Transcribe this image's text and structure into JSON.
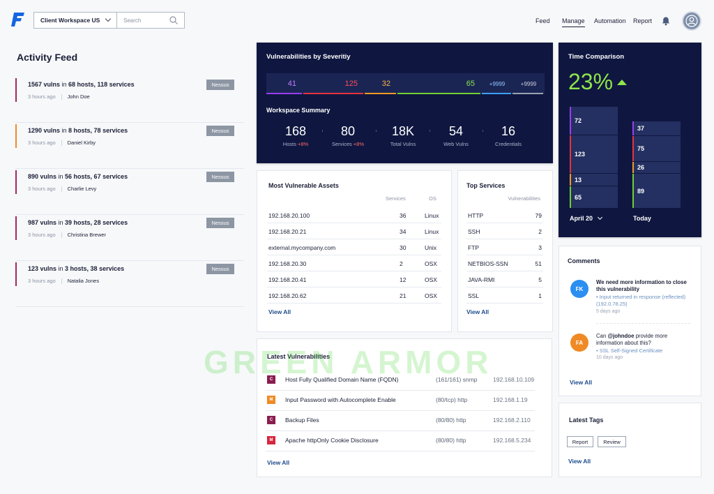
{
  "header": {
    "workspace": "Client Workspace US",
    "search_placeholder": "Search",
    "nav": [
      {
        "label": "Feed",
        "active": false
      },
      {
        "label": "Manage",
        "active": true
      },
      {
        "label": "Automation",
        "active": false
      },
      {
        "label": "Report",
        "active": false
      }
    ]
  },
  "activity_feed": {
    "title": "Activity Feed",
    "items": [
      {
        "vulns": "1567 vulns",
        "mid": " in ",
        "hosts": "68 hosts, 118 services",
        "time": "3 hours ago",
        "user": "John Doe",
        "tag": "Nessus",
        "color": "#a0275f"
      },
      {
        "vulns": "1290 vulns",
        "mid": " in ",
        "hosts": "8 hosts, 78 services",
        "time": "3 hours ago",
        "user": "Daniel Kirby",
        "tag": "Nessus",
        "color": "#f08a24"
      },
      {
        "vulns": "890 vulns",
        "mid": " in ",
        "hosts": "56 hosts, 67 services",
        "time": "3 hours ago",
        "user": "Charlie Levy",
        "tag": "Nessus",
        "color": "#a0275f"
      },
      {
        "vulns": "987 vulns",
        "mid": " in ",
        "hosts": "39 hosts, 28 services",
        "time": "3 hours ago",
        "user": "Christina Brewer",
        "tag": "Nessus",
        "color": "#a0275f"
      },
      {
        "vulns": "123 vulns",
        "mid": " in ",
        "hosts": "3 hosts, 38 services",
        "time": "3 hours ago",
        "user": "Natalia Jones",
        "tag": "Nessus",
        "color": "#a0275f"
      }
    ]
  },
  "severity": {
    "title": "Vulnerabilities by Severitiy",
    "cells": [
      {
        "value": "41",
        "text_color": "#c57bff",
        "line_color": "#9b3cf0"
      },
      {
        "value": "125",
        "text_color": "#ff4d5a",
        "line_color": "#e8323f"
      },
      {
        "value": "32",
        "text_color": "#ffb347",
        "line_color": "#f39a1e"
      },
      {
        "value": "65",
        "text_color": "#8ee44a",
        "line_color": "#6fd12e"
      },
      {
        "value": "+9999",
        "text_color": "#8fc6ff",
        "line_color": "#3fa0ff"
      },
      {
        "value": "+9999",
        "text_color": "#c9ced9",
        "line_color": "#9aa3b2"
      }
    ]
  },
  "workspace_summary": {
    "title": "Workspace Summary",
    "stats": [
      {
        "value": "168",
        "label": "Hosts",
        "delta": "+8%"
      },
      {
        "value": "80",
        "label": "Services",
        "delta": "+8%"
      },
      {
        "value": "18K",
        "label": "Total Vulns",
        "delta": ""
      },
      {
        "value": "54",
        "label": "Web Vulns",
        "delta": ""
      },
      {
        "value": "16",
        "label": "Credentials",
        "delta": ""
      }
    ]
  },
  "time_comparison": {
    "title": "Time Comparison",
    "percent": "23%",
    "left_blocks": [
      "72",
      "123",
      "13",
      "65"
    ],
    "right_blocks": [
      "37",
      "75",
      "26",
      "89"
    ],
    "left_label": "April 20",
    "right_label": "Today"
  },
  "assets": {
    "title": "Most Vulnerable Assets",
    "col_services": "Services",
    "col_os": "OS",
    "rows": [
      {
        "host": "192.168.20.100",
        "services": "36",
        "os": "Linux"
      },
      {
        "host": "192.168.20.21",
        "services": "34",
        "os": "Linux"
      },
      {
        "host": "external.mycompany.com",
        "services": "30",
        "os": "Unix"
      },
      {
        "host": "192.168.20.30",
        "services": "2",
        "os": "OSX"
      },
      {
        "host": "192.168.20.41",
        "services": "12",
        "os": "OSX"
      },
      {
        "host": "192.168.20.62",
        "services": "21",
        "os": "OSX"
      }
    ],
    "view_all": "View All"
  },
  "top_services": {
    "title": "Top Services",
    "col_vulns": "Vulnerabilities",
    "rows": [
      {
        "name": "HTTP",
        "count": "79"
      },
      {
        "name": "SSH",
        "count": "2"
      },
      {
        "name": "FTP",
        "count": "3"
      },
      {
        "name": "NETBIOS-SSN",
        "count": "51"
      },
      {
        "name": "JAVA-RMI",
        "count": "5"
      },
      {
        "name": "SSL",
        "count": "1"
      }
    ],
    "view_all": "View All"
  },
  "latest_vulns": {
    "title": "Latest Vulnerabilities",
    "rows": [
      {
        "badge": "C",
        "badge_color": "#8a1d4e",
        "name": "Host Fully Qualified Domain Name (FQDN)",
        "port": "(161/161) snmp",
        "ip": "192.168.10.109"
      },
      {
        "badge": "M",
        "badge_color": "#f08a24",
        "name": "Input Password with Autocomplete Enable",
        "port": "(80/tcp) http",
        "ip": "192.168.1.19"
      },
      {
        "badge": "C",
        "badge_color": "#8a1d4e",
        "name": "Backup Files",
        "port": "(80/80) http",
        "ip": "192.168.2.110"
      },
      {
        "badge": "M",
        "badge_color": "#d7263d",
        "name": "Apache httpOnly Cookie Disclosure",
        "port": "(80/80) http",
        "ip": "192.168.5.234"
      }
    ],
    "view_all": "View All"
  },
  "comments": {
    "title": "Comments",
    "items": [
      {
        "initials": "FK",
        "color": "#2b8ef0",
        "text": "We need more information to close this vulnerability",
        "ref": "• Input returned in response (reflected) (192.0.78.25)",
        "time": "5 days ago"
      },
      {
        "initials": "FA",
        "color": "#f08a24",
        "mention": "@johndoe",
        "text_prefix": "Can ",
        "text_suffix": " provide more information about this?",
        "ref": "• SSL Self-Signed Certificate",
        "time": "10 days ago"
      }
    ],
    "view_all": "View All"
  },
  "tags": {
    "title": "Latest Tags",
    "items": [
      "Report",
      "Review"
    ],
    "view_all": "View All"
  },
  "watermark": "GREEN ARMOR"
}
